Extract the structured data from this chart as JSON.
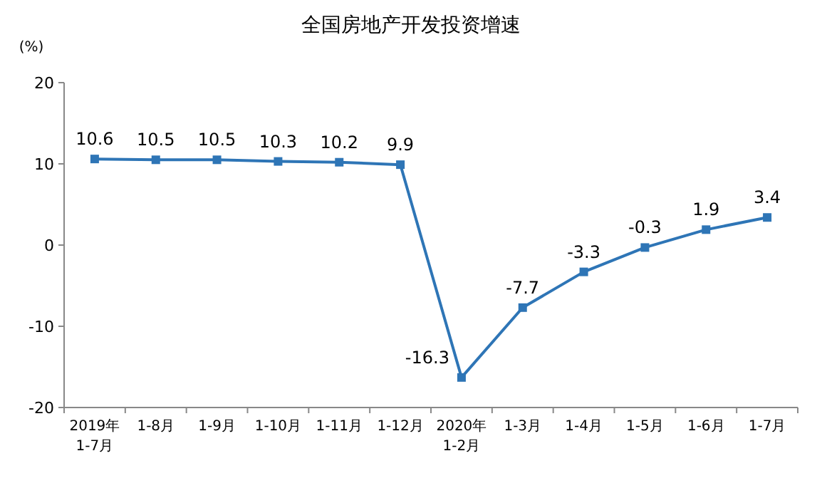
{
  "chart_data": {
    "type": "line",
    "title": "全国房地产开发投资增速",
    "ylabel": "(%)",
    "categories": [
      "2019年\n1-7月",
      "1-8月",
      "1-9月",
      "1-10月",
      "1-11月",
      "1-12月",
      "2020年\n1-2月",
      "1-3月",
      "1-4月",
      "1-5月",
      "1-6月",
      "1-7月"
    ],
    "series": [
      {
        "color": "#2e75b6",
        "values": [
          10.6,
          10.5,
          10.5,
          10.3,
          10.2,
          9.9,
          -16.3,
          -7.7,
          -3.3,
          -0.3,
          1.9,
          3.4
        ]
      }
    ],
    "ylim": [
      -20,
      20
    ],
    "yticks": [
      -20,
      -10,
      0,
      10,
      20
    ],
    "data_labels": true,
    "marker": "square"
  }
}
